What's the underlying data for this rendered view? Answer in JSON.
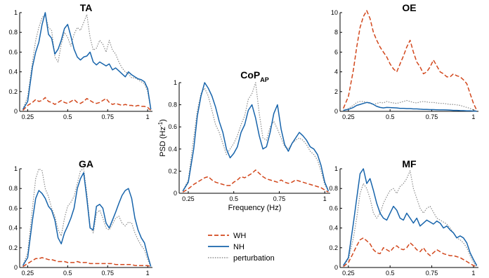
{
  "colors": {
    "WH": "#d2471c",
    "NH": "#1764ab",
    "perturbation": "#8c8c8c"
  },
  "legend": {
    "entries": [
      {
        "key": "WH",
        "label": "WH",
        "style": "dashed"
      },
      {
        "key": "NH",
        "label": "NH",
        "style": "solid"
      },
      {
        "key": "perturbation",
        "label": "perturbation",
        "style": "dotted"
      }
    ]
  },
  "chart_data": [
    {
      "id": "TA",
      "type": "line",
      "title": "TA",
      "xlabel": "",
      "ylabel": "",
      "xlim": [
        0.2,
        1.03
      ],
      "ylim": [
        0,
        1
      ],
      "xticks": [
        "0.25",
        "0.5",
        "0.75",
        "1"
      ],
      "xtick_values": [
        0.25,
        0.5,
        0.75,
        1
      ],
      "yticks": [
        "0",
        "0.2",
        "0.4",
        "0.6",
        "0.8",
        "1"
      ],
      "ytick_values": [
        0,
        0.2,
        0.4,
        0.6,
        0.8,
        1
      ],
      "x": [
        0.22,
        0.25,
        0.28,
        0.3,
        0.32,
        0.34,
        0.36,
        0.38,
        0.4,
        0.42,
        0.44,
        0.46,
        0.48,
        0.5,
        0.52,
        0.54,
        0.56,
        0.58,
        0.6,
        0.62,
        0.64,
        0.66,
        0.68,
        0.7,
        0.72,
        0.74,
        0.76,
        0.78,
        0.8,
        0.82,
        0.84,
        0.86,
        0.88,
        0.9,
        0.92,
        0.94,
        0.96,
        0.98,
        1.0,
        1.02
      ],
      "series": [
        {
          "name": "NH",
          "values": [
            0.02,
            0.1,
            0.45,
            0.6,
            0.7,
            0.88,
            1.0,
            0.78,
            0.74,
            0.58,
            0.63,
            0.72,
            0.84,
            0.88,
            0.76,
            0.63,
            0.55,
            0.52,
            0.55,
            0.56,
            0.6,
            0.5,
            0.47,
            0.5,
            0.48,
            0.46,
            0.48,
            0.42,
            0.44,
            0.41,
            0.38,
            0.35,
            0.4,
            0.37,
            0.35,
            0.33,
            0.32,
            0.3,
            0.23,
            0.02
          ]
        },
        {
          "name": "WH",
          "values": [
            0.01,
            0.06,
            0.09,
            0.12,
            0.1,
            0.11,
            0.14,
            0.1,
            0.09,
            0.07,
            0.09,
            0.11,
            0.09,
            0.08,
            0.1,
            0.12,
            0.09,
            0.08,
            0.1,
            0.13,
            0.11,
            0.09,
            0.08,
            0.09,
            0.11,
            0.13,
            0.09,
            0.07,
            0.08,
            0.07,
            0.06,
            0.07,
            0.06,
            0.06,
            0.05,
            0.06,
            0.05,
            0.05,
            0.04,
            0.01
          ]
        },
        {
          "name": "perturbation",
          "values": [
            0.02,
            0.15,
            0.5,
            0.72,
            0.85,
            0.95,
            0.98,
            0.85,
            0.82,
            0.55,
            0.5,
            0.68,
            0.8,
            0.75,
            0.66,
            0.78,
            0.85,
            0.82,
            0.9,
            0.98,
            0.75,
            0.62,
            0.64,
            0.72,
            0.68,
            0.6,
            0.72,
            0.62,
            0.58,
            0.5,
            0.44,
            0.4,
            0.38,
            0.34,
            0.34,
            0.32,
            0.3,
            0.28,
            0.2,
            0.02
          ]
        }
      ]
    },
    {
      "id": "GA",
      "type": "line",
      "title": "GA",
      "xlabel": "",
      "ylabel": "",
      "xlim": [
        0.2,
        1.03
      ],
      "ylim": [
        0,
        1
      ],
      "xticks": [
        "0.25",
        "0.5",
        "0.75",
        "1"
      ],
      "xtick_values": [
        0.25,
        0.5,
        0.75,
        1
      ],
      "yticks": [
        "0",
        "0.2",
        "0.4",
        "0.6",
        "0.8",
        "1"
      ],
      "ytick_values": [
        0,
        0.2,
        0.4,
        0.6,
        0.8,
        1
      ],
      "x": [
        0.22,
        0.25,
        0.28,
        0.3,
        0.32,
        0.34,
        0.36,
        0.38,
        0.4,
        0.42,
        0.44,
        0.46,
        0.48,
        0.5,
        0.52,
        0.54,
        0.56,
        0.58,
        0.6,
        0.62,
        0.64,
        0.66,
        0.68,
        0.7,
        0.72,
        0.74,
        0.76,
        0.78,
        0.8,
        0.82,
        0.84,
        0.86,
        0.88,
        0.9,
        0.92,
        0.94,
        0.96,
        0.98,
        1.0,
        1.02
      ],
      "series": [
        {
          "name": "NH",
          "values": [
            0.02,
            0.1,
            0.48,
            0.7,
            0.78,
            0.75,
            0.7,
            0.62,
            0.58,
            0.48,
            0.3,
            0.24,
            0.35,
            0.42,
            0.5,
            0.6,
            0.8,
            0.9,
            0.96,
            0.7,
            0.4,
            0.38,
            0.62,
            0.64,
            0.6,
            0.45,
            0.4,
            0.48,
            0.56,
            0.65,
            0.73,
            0.78,
            0.8,
            0.7,
            0.5,
            0.38,
            0.3,
            0.25,
            0.12,
            0.01
          ]
        },
        {
          "name": "WH",
          "values": [
            0.01,
            0.04,
            0.07,
            0.09,
            0.09,
            0.1,
            0.09,
            0.08,
            0.08,
            0.07,
            0.06,
            0.06,
            0.06,
            0.05,
            0.05,
            0.05,
            0.06,
            0.05,
            0.05,
            0.05,
            0.04,
            0.04,
            0.04,
            0.04,
            0.04,
            0.04,
            0.04,
            0.04,
            0.03,
            0.03,
            0.03,
            0.03,
            0.03,
            0.03,
            0.02,
            0.02,
            0.02,
            0.02,
            0.02,
            0.01
          ]
        },
        {
          "name": "perturbation",
          "values": [
            0.02,
            0.15,
            0.6,
            0.9,
            1.0,
            0.98,
            0.8,
            0.72,
            0.6,
            0.52,
            0.38,
            0.32,
            0.5,
            0.62,
            0.66,
            0.72,
            0.85,
            0.98,
            1.0,
            0.75,
            0.42,
            0.35,
            0.55,
            0.58,
            0.5,
            0.4,
            0.38,
            0.44,
            0.5,
            0.52,
            0.45,
            0.42,
            0.46,
            0.45,
            0.35,
            0.28,
            0.22,
            0.18,
            0.08,
            0.01
          ]
        }
      ]
    },
    {
      "id": "CoP",
      "type": "line",
      "title": "CoP",
      "title_sub": "AP",
      "xlabel": "Frequency (Hz)",
      "ylabel": "PSD (Hz",
      "ylabel_sup": "-1",
      "ylabel_end": ")",
      "xlim": [
        0.2,
        1.03
      ],
      "ylim": [
        0,
        1
      ],
      "xticks": [
        "0.25",
        "0.5",
        "0.75",
        "1"
      ],
      "xtick_values": [
        0.25,
        0.5,
        0.75,
        1
      ],
      "yticks": [
        "0",
        "0.2",
        "0.4",
        "0.6",
        "0.8",
        "1"
      ],
      "ytick_values": [
        0,
        0.2,
        0.4,
        0.6,
        0.8,
        1
      ],
      "x": [
        0.22,
        0.25,
        0.28,
        0.3,
        0.32,
        0.34,
        0.36,
        0.38,
        0.4,
        0.42,
        0.44,
        0.46,
        0.48,
        0.5,
        0.52,
        0.54,
        0.56,
        0.58,
        0.6,
        0.62,
        0.64,
        0.66,
        0.68,
        0.7,
        0.72,
        0.74,
        0.76,
        0.78,
        0.8,
        0.82,
        0.84,
        0.86,
        0.88,
        0.9,
        0.92,
        0.94,
        0.96,
        0.98,
        1.0,
        1.02
      ],
      "series": [
        {
          "name": "NH",
          "values": [
            0.02,
            0.1,
            0.4,
            0.7,
            0.88,
            1.0,
            0.95,
            0.88,
            0.78,
            0.65,
            0.55,
            0.4,
            0.32,
            0.36,
            0.42,
            0.55,
            0.62,
            0.75,
            0.8,
            0.68,
            0.52,
            0.4,
            0.42,
            0.55,
            0.72,
            0.8,
            0.58,
            0.44,
            0.38,
            0.45,
            0.5,
            0.55,
            0.52,
            0.48,
            0.42,
            0.4,
            0.35,
            0.25,
            0.1,
            0.02
          ]
        },
        {
          "name": "WH",
          "values": [
            0.01,
            0.04,
            0.08,
            0.1,
            0.12,
            0.14,
            0.15,
            0.12,
            0.1,
            0.09,
            0.08,
            0.07,
            0.07,
            0.1,
            0.12,
            0.15,
            0.14,
            0.16,
            0.18,
            0.21,
            0.18,
            0.15,
            0.13,
            0.12,
            0.11,
            0.1,
            0.12,
            0.1,
            0.09,
            0.1,
            0.12,
            0.11,
            0.1,
            0.09,
            0.08,
            0.07,
            0.06,
            0.05,
            0.03,
            0.01
          ]
        },
        {
          "name": "perturbation",
          "values": [
            0.02,
            0.12,
            0.5,
            0.75,
            0.9,
            0.95,
            0.88,
            0.75,
            0.62,
            0.55,
            0.45,
            0.35,
            0.4,
            0.45,
            0.52,
            0.62,
            0.7,
            0.85,
            0.9,
            1.0,
            0.72,
            0.5,
            0.48,
            0.6,
            0.65,
            0.58,
            0.5,
            0.42,
            0.4,
            0.45,
            0.48,
            0.5,
            0.48,
            0.44,
            0.38,
            0.35,
            0.3,
            0.2,
            0.08,
            0.02
          ]
        }
      ]
    },
    {
      "id": "OE",
      "type": "line",
      "title": "OE",
      "xlabel": "",
      "ylabel": "",
      "xlim": [
        0.2,
        1.03
      ],
      "ylim": [
        0,
        10
      ],
      "xticks": [
        "0.25",
        "0.5",
        "0.75",
        "1"
      ],
      "xtick_values": [
        0.25,
        0.5,
        0.75,
        1
      ],
      "yticks": [
        "0",
        "2",
        "4",
        "6",
        "8",
        "10"
      ],
      "ytick_values": [
        0,
        2,
        4,
        6,
        8,
        10
      ],
      "x": [
        0.22,
        0.25,
        0.28,
        0.3,
        0.32,
        0.34,
        0.36,
        0.38,
        0.4,
        0.42,
        0.44,
        0.46,
        0.48,
        0.5,
        0.52,
        0.54,
        0.56,
        0.58,
        0.6,
        0.62,
        0.64,
        0.66,
        0.68,
        0.7,
        0.72,
        0.74,
        0.76,
        0.78,
        0.8,
        0.82,
        0.84,
        0.86,
        0.88,
        0.9,
        0.92,
        0.94,
        0.96,
        0.98,
        1.0,
        1.02
      ],
      "series": [
        {
          "name": "WH",
          "values": [
            0.3,
            1.5,
            4.2,
            6.5,
            8.5,
            9.6,
            10.2,
            9.4,
            8.0,
            7.2,
            6.5,
            6.0,
            5.5,
            4.8,
            4.3,
            4.0,
            4.8,
            5.6,
            6.5,
            7.2,
            6.0,
            5.0,
            4.5,
            3.8,
            4.0,
            4.5,
            5.2,
            4.6,
            4.0,
            3.8,
            3.5,
            3.5,
            3.8,
            3.6,
            3.5,
            3.2,
            2.8,
            1.8,
            0.8,
            0.1
          ]
        },
        {
          "name": "NH",
          "values": [
            0.1,
            0.2,
            0.4,
            0.6,
            0.7,
            0.8,
            0.9,
            0.85,
            0.7,
            0.5,
            0.4,
            0.35,
            0.4,
            0.38,
            0.36,
            0.35,
            0.3,
            0.3,
            0.28,
            0.28,
            0.25,
            0.25,
            0.22,
            0.2,
            0.2,
            0.18,
            0.18,
            0.16,
            0.15,
            0.15,
            0.14,
            0.12,
            0.1,
            0.1,
            0.08,
            0.07,
            0.06,
            0.05,
            0.03,
            0.01
          ]
        },
        {
          "name": "perturbation",
          "values": [
            0.1,
            0.3,
            0.6,
            0.9,
            1.0,
            1.0,
            0.9,
            0.8,
            0.7,
            0.8,
            0.9,
            0.85,
            1.0,
            0.9,
            0.85,
            0.8,
            0.9,
            1.0,
            1.1,
            1.0,
            0.9,
            0.85,
            0.95,
            1.0,
            0.95,
            0.9,
            0.9,
            0.85,
            0.8,
            0.8,
            0.75,
            0.7,
            0.7,
            0.65,
            0.6,
            0.5,
            0.4,
            0.3,
            0.15,
            0.05
          ]
        }
      ]
    },
    {
      "id": "MF",
      "type": "line",
      "title": "MF",
      "xlabel": "",
      "ylabel": "",
      "xlim": [
        0.2,
        1.03
      ],
      "ylim": [
        0,
        1
      ],
      "xticks": [
        "0.25",
        "0.5",
        "0.75",
        "1"
      ],
      "xtick_values": [
        0.25,
        0.5,
        0.75,
        1
      ],
      "yticks": [
        "0",
        "0.2",
        "0.4",
        "0.6",
        "0.8",
        "1"
      ],
      "ytick_values": [
        0,
        0.2,
        0.4,
        0.6,
        0.8,
        1
      ],
      "x": [
        0.22,
        0.25,
        0.28,
        0.3,
        0.32,
        0.34,
        0.36,
        0.38,
        0.4,
        0.42,
        0.44,
        0.46,
        0.48,
        0.5,
        0.52,
        0.54,
        0.56,
        0.58,
        0.6,
        0.62,
        0.64,
        0.66,
        0.68,
        0.7,
        0.72,
        0.74,
        0.76,
        0.78,
        0.8,
        0.82,
        0.84,
        0.86,
        0.88,
        0.9,
        0.92,
        0.94,
        0.96,
        0.98,
        1.0,
        1.02
      ],
      "series": [
        {
          "name": "NH",
          "values": [
            0.02,
            0.1,
            0.45,
            0.7,
            0.95,
            1.0,
            0.85,
            0.9,
            0.78,
            0.65,
            0.55,
            0.5,
            0.48,
            0.55,
            0.62,
            0.58,
            0.5,
            0.48,
            0.55,
            0.5,
            0.45,
            0.5,
            0.42,
            0.45,
            0.48,
            0.46,
            0.44,
            0.47,
            0.45,
            0.4,
            0.42,
            0.38,
            0.35,
            0.3,
            0.32,
            0.3,
            0.25,
            0.15,
            0.08,
            0.02
          ]
        },
        {
          "name": "WH",
          "values": [
            0.01,
            0.05,
            0.15,
            0.22,
            0.28,
            0.3,
            0.27,
            0.24,
            0.18,
            0.15,
            0.14,
            0.2,
            0.18,
            0.16,
            0.2,
            0.22,
            0.19,
            0.18,
            0.2,
            0.25,
            0.22,
            0.18,
            0.16,
            0.2,
            0.15,
            0.12,
            0.15,
            0.18,
            0.16,
            0.14,
            0.13,
            0.12,
            0.12,
            0.11,
            0.1,
            0.08,
            0.06,
            0.04,
            0.02,
            0.01
          ]
        },
        {
          "name": "perturbation",
          "values": [
            0.02,
            0.08,
            0.3,
            0.5,
            0.75,
            0.85,
            0.8,
            0.7,
            0.55,
            0.5,
            0.55,
            0.65,
            0.72,
            0.78,
            0.8,
            0.75,
            0.82,
            0.85,
            0.9,
            0.98,
            0.8,
            0.7,
            0.6,
            0.55,
            0.6,
            0.62,
            0.56,
            0.5,
            0.48,
            0.46,
            0.44,
            0.4,
            0.35,
            0.3,
            0.28,
            0.25,
            0.2,
            0.12,
            0.05,
            0.01
          ]
        }
      ]
    }
  ]
}
